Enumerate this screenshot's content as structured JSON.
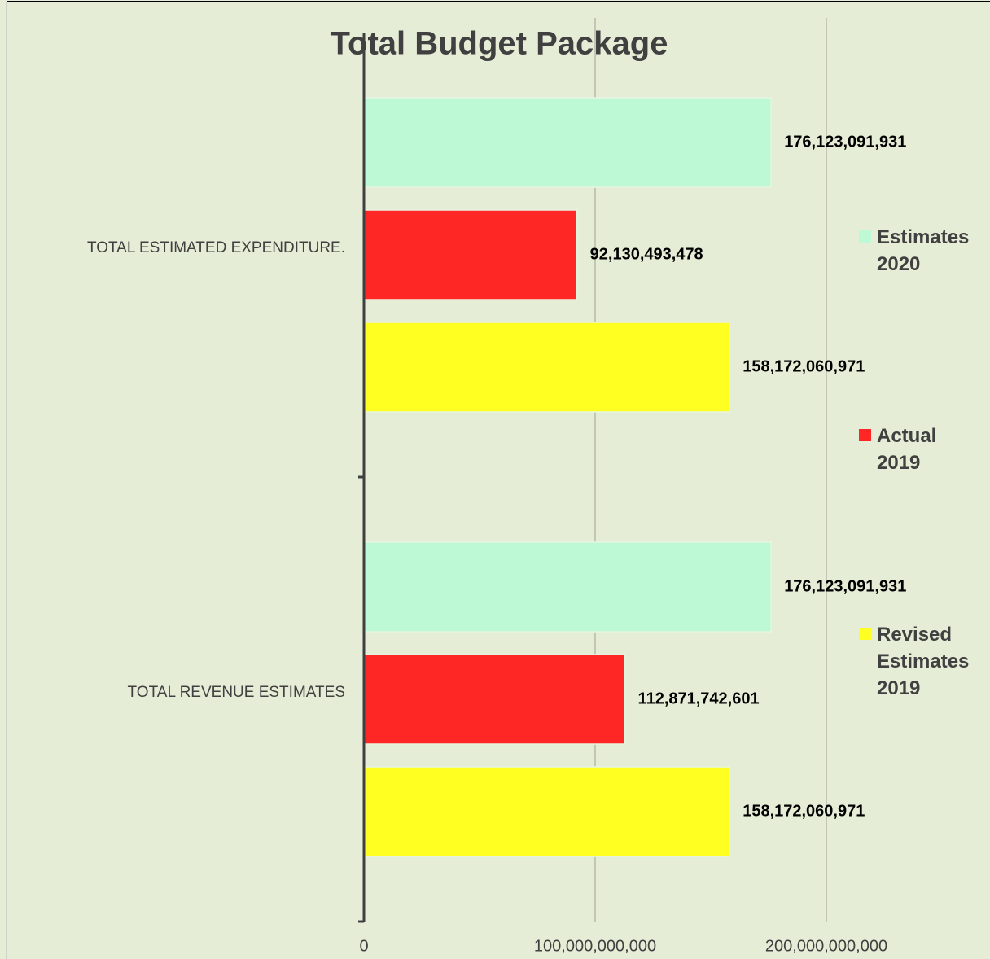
{
  "chart_data": {
    "type": "barh",
    "title": "Total Budget Package",
    "categories": [
      "TOTAL ESTIMATED EXPENDITURE.",
      "TOTAL REVENUE ESTIMATES"
    ],
    "series": [
      {
        "name": "Estimates 2020",
        "color": "#bdf9d5",
        "values": [
          176123091931,
          176123091931
        ],
        "value_labels": [
          "176,123,091,931",
          "176,123,091,931"
        ]
      },
      {
        "name": "Actual 2019",
        "color": "#ff2626",
        "values": [
          92130493478,
          112871742601
        ],
        "value_labels": [
          "92,130,493,478",
          "112,871,742,601"
        ]
      },
      {
        "name": "Revised Estimates 2019",
        "color": "#ffff22",
        "values": [
          158172060971,
          158172060971
        ],
        "value_labels": [
          "158,172,060,971",
          "158,172,060,971"
        ]
      }
    ],
    "xlim": [
      0,
      200000000000
    ],
    "xticks": [
      0,
      {
        "value": 100000000000,
        "label": "100,000,000,000"
      },
      {
        "value": 200000000000,
        "label": "200,000,000,000"
      }
    ],
    "grid": true,
    "legend": "right"
  }
}
